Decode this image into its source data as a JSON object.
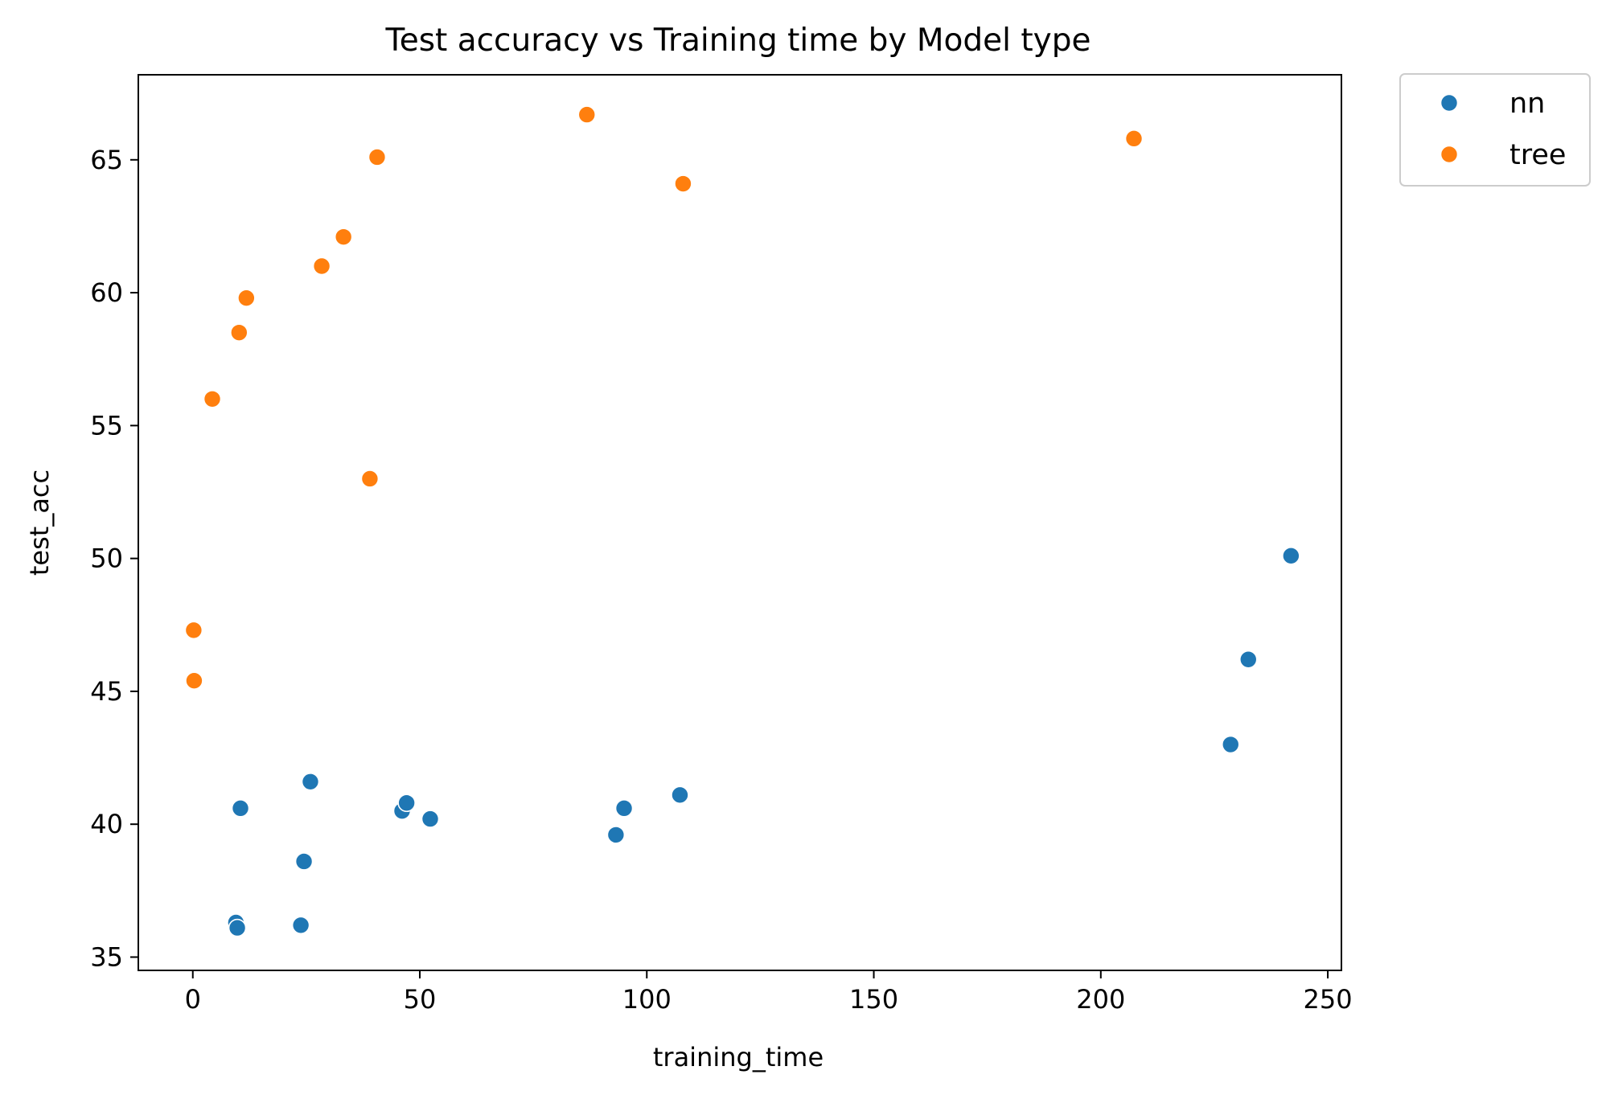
{
  "chart_data": {
    "type": "scatter",
    "title": "Test accuracy vs Training time by Model type",
    "xlabel": "training_time",
    "ylabel": "test_acc",
    "xlim": [
      -12,
      253
    ],
    "ylim": [
      34.5,
      68.2
    ],
    "xticks": [
      0,
      50,
      100,
      150,
      200,
      250
    ],
    "yticks": [
      35,
      40,
      45,
      50,
      55,
      60,
      65
    ],
    "grid": false,
    "legend_position": "outside-top-right",
    "series": [
      {
        "name": "nn",
        "color": "#1f77b4",
        "points": [
          {
            "x": 9.5,
            "y": 36.3
          },
          {
            "x": 9.8,
            "y": 36.1
          },
          {
            "x": 10.5,
            "y": 40.6
          },
          {
            "x": 23.8,
            "y": 36.2
          },
          {
            "x": 24.5,
            "y": 38.6
          },
          {
            "x": 25.9,
            "y": 41.6
          },
          {
            "x": 46.1,
            "y": 40.5
          },
          {
            "x": 47.1,
            "y": 40.8
          },
          {
            "x": 52.3,
            "y": 40.2
          },
          {
            "x": 93.2,
            "y": 39.6
          },
          {
            "x": 95.0,
            "y": 40.6
          },
          {
            "x": 107.3,
            "y": 41.1
          },
          {
            "x": 228.6,
            "y": 43.0
          },
          {
            "x": 232.5,
            "y": 46.2
          },
          {
            "x": 241.9,
            "y": 50.1
          }
        ]
      },
      {
        "name": "tree",
        "color": "#ff7f0e",
        "points": [
          {
            "x": 0.2,
            "y": 47.3
          },
          {
            "x": 0.3,
            "y": 45.4
          },
          {
            "x": 4.3,
            "y": 56.0
          },
          {
            "x": 10.2,
            "y": 58.5
          },
          {
            "x": 11.8,
            "y": 59.8
          },
          {
            "x": 28.4,
            "y": 61.0
          },
          {
            "x": 33.2,
            "y": 62.1
          },
          {
            "x": 39.0,
            "y": 53.0
          },
          {
            "x": 40.6,
            "y": 65.1
          },
          {
            "x": 86.8,
            "y": 66.7
          },
          {
            "x": 108.0,
            "y": 64.1
          },
          {
            "x": 207.3,
            "y": 65.8
          }
        ]
      }
    ]
  }
}
